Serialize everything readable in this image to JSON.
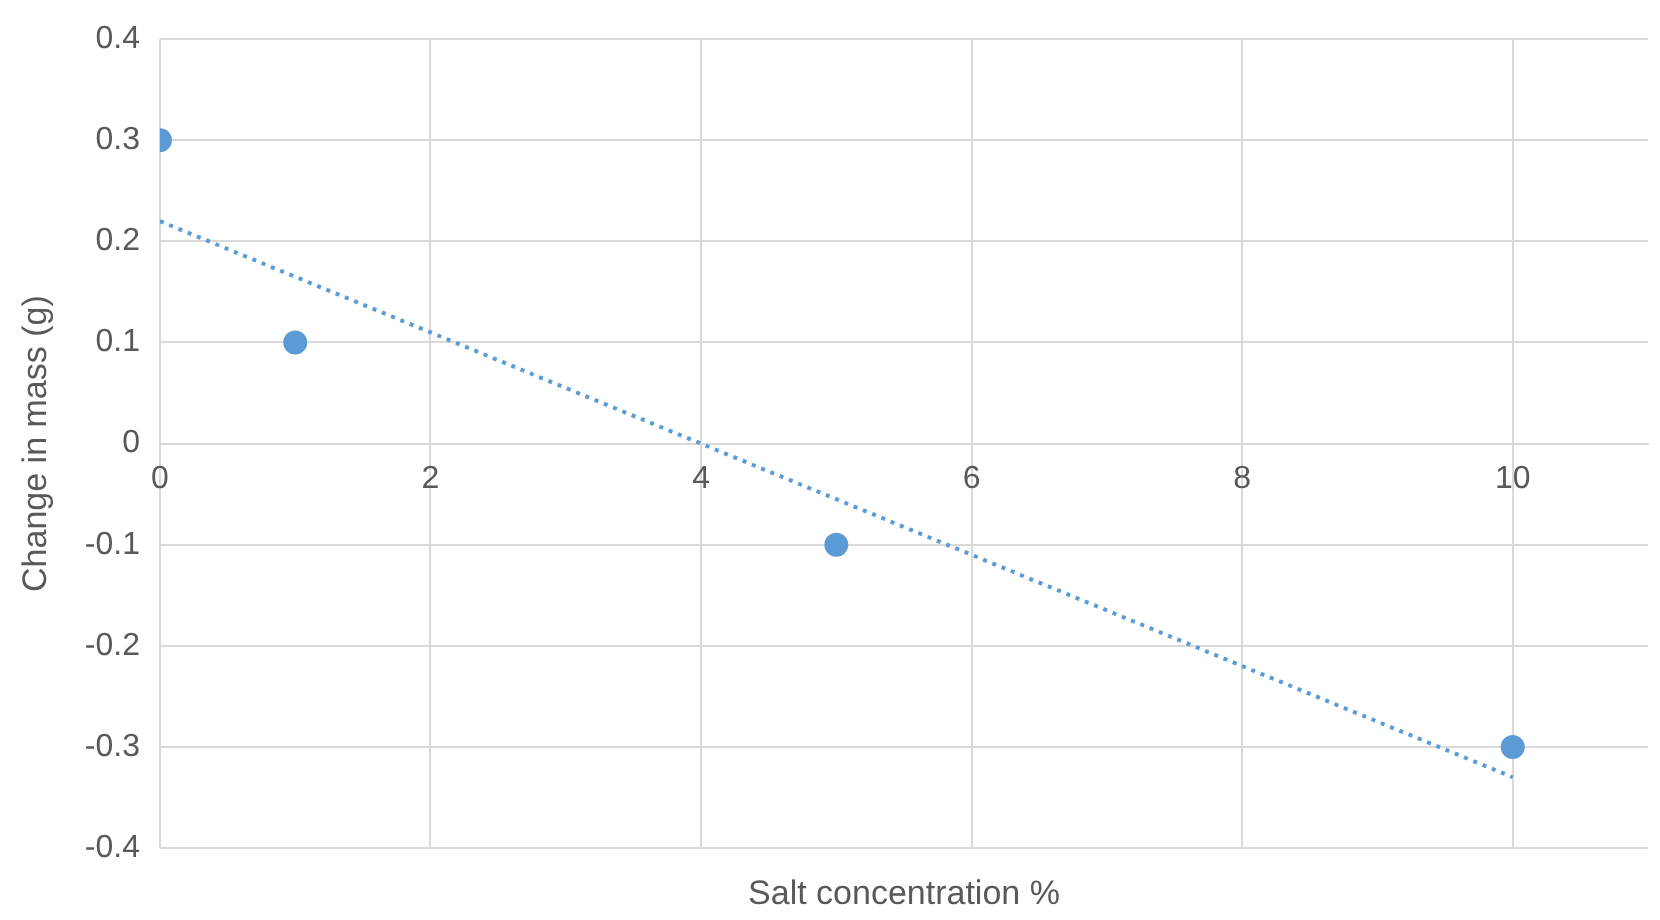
{
  "chart_data": {
    "type": "scatter",
    "xlabel": "Salt concentration %",
    "ylabel": "Change in mass (g)",
    "xlim": [
      0,
      11
    ],
    "xticks": [
      0,
      2,
      4,
      6,
      8,
      10
    ],
    "ylim": [
      -0.4,
      0.4
    ],
    "yticks": [
      -0.4,
      -0.3,
      -0.2,
      -0.1,
      0,
      0.1,
      0.2,
      0.3,
      0.4
    ],
    "grid": true,
    "marker": "circle",
    "series": [
      {
        "color": "#5b9bd5",
        "x": [
          0,
          1,
          5,
          10
        ],
        "values": [
          0.3,
          0.1,
          -0.1,
          -0.3
        ]
      },
      {
        "type": "line",
        "color": "#5b9bd5",
        "line_style": "dotted",
        "marker": "none",
        "x": [
          0,
          10
        ],
        "values": [
          0.22,
          -0.33
        ]
      }
    ]
  }
}
